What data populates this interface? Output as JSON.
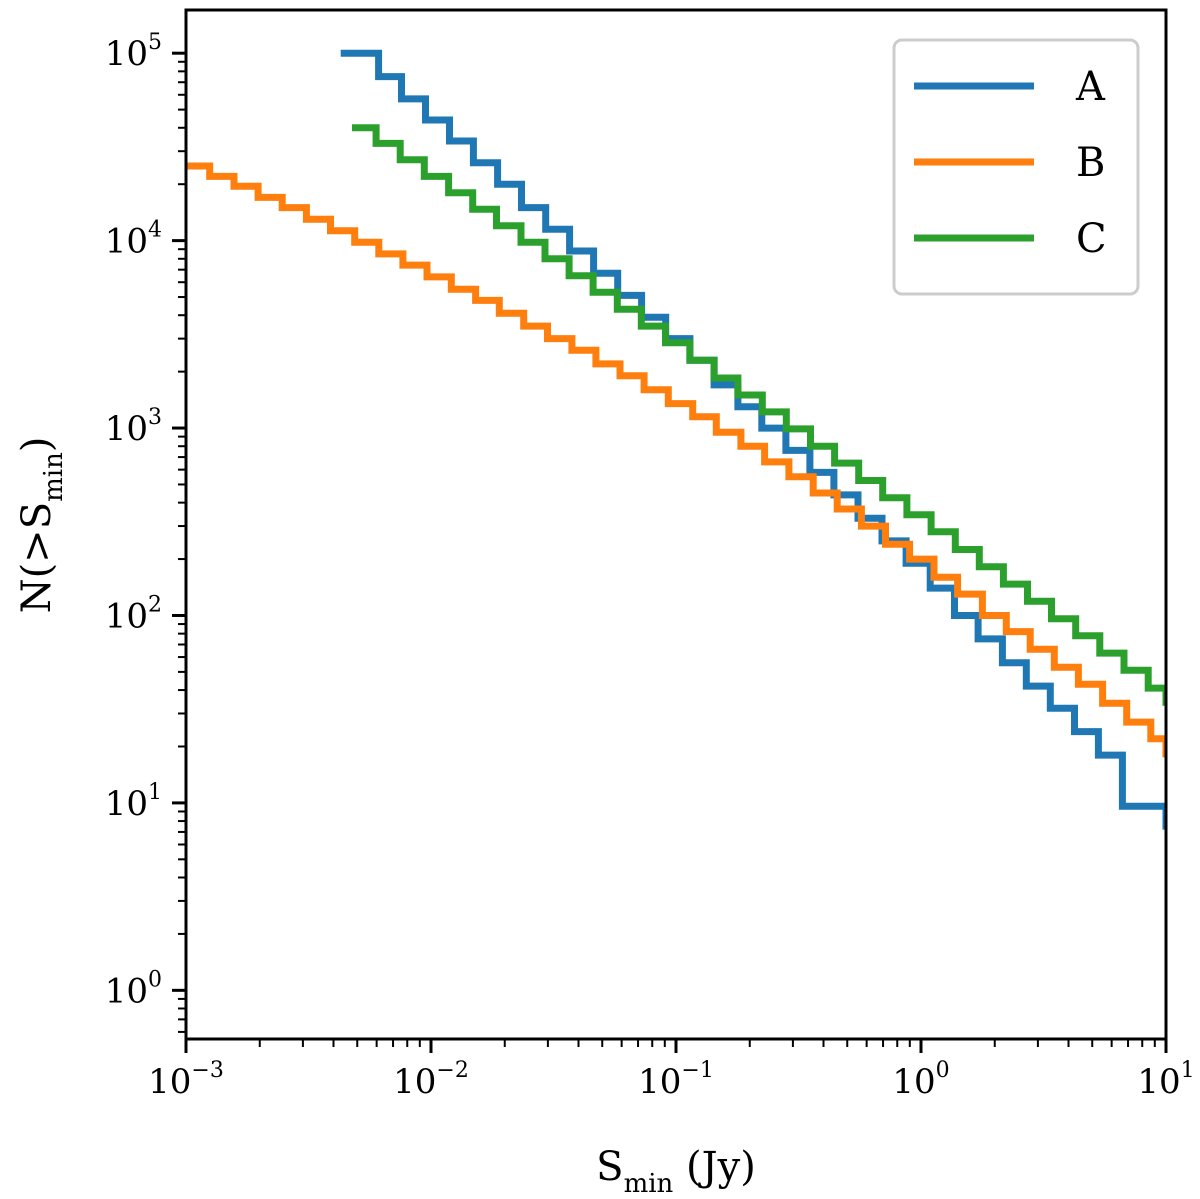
{
  "chart_data": {
    "type": "line",
    "step": true,
    "x_scale": "log",
    "y_scale": "log",
    "xlim": [
      0.001,
      10
    ],
    "ylim": [
      0.55,
      170000
    ],
    "x_ticks": [
      {
        "value": 0.001,
        "base": "10",
        "exp": "−3"
      },
      {
        "value": 0.01,
        "base": "10",
        "exp": "−2"
      },
      {
        "value": 0.1,
        "base": "10",
        "exp": "−1"
      },
      {
        "value": 1,
        "base": "10",
        "exp": "0"
      },
      {
        "value": 10,
        "base": "10",
        "exp": "1"
      }
    ],
    "y_ticks": [
      {
        "value": 1,
        "base": "10",
        "exp": "0"
      },
      {
        "value": 10,
        "base": "10",
        "exp": "1"
      },
      {
        "value": 100,
        "base": "10",
        "exp": "2"
      },
      {
        "value": 1000,
        "base": "10",
        "exp": "3"
      },
      {
        "value": 10000,
        "base": "10",
        "exp": "4"
      },
      {
        "value": 100000,
        "base": "10",
        "exp": "5"
      }
    ],
    "xlabel": {
      "main": "S",
      "sub": "min",
      "unit": " (Jy)"
    },
    "ylabel": {
      "pre": "N(>S",
      "sub": "min",
      "post": ")"
    },
    "legend_position": "upper-right",
    "series": [
      {
        "name": "A",
        "color": "#1f77b4",
        "x": [
          0.00428,
          0.00531,
          0.00611,
          0.00758,
          0.0095,
          0.0119,
          0.0149,
          0.0187,
          0.0234,
          0.0294,
          0.0368,
          0.0461,
          0.0578,
          0.0724,
          0.0908,
          0.114,
          0.143,
          0.179,
          0.224,
          0.281,
          0.352,
          0.441,
          0.553,
          0.693,
          0.869,
          1.09,
          1.37,
          1.71,
          2.15,
          2.69,
          3.37,
          4.23,
          5.3,
          6.64,
          6.64,
          10
        ],
        "y": [
          100000,
          100000,
          75000,
          57000,
          44000,
          34000,
          26000,
          20000,
          15000,
          11500,
          8800,
          6700,
          5100,
          3900,
          3000,
          2300,
          1700,
          1300,
          1000,
          760,
          580,
          440,
          330,
          250,
          190,
          140,
          100,
          75,
          56,
          42,
          32,
          24,
          18,
          13,
          9.6,
          7.2
        ]
      },
      {
        "name": "B",
        "color": "#ff7f0e",
        "x": [
          0.001,
          0.00125,
          0.00157,
          0.00197,
          0.00247,
          0.0031,
          0.00389,
          0.00488,
          0.00612,
          0.00768,
          0.00963,
          0.0121,
          0.0152,
          0.019,
          0.0239,
          0.0299,
          0.0376,
          0.0471,
          0.0591,
          0.0741,
          0.093,
          0.117,
          0.146,
          0.184,
          0.23,
          0.289,
          0.363,
          0.455,
          0.571,
          0.716,
          0.898,
          1.13,
          1.41,
          1.78,
          2.23,
          2.79,
          3.5,
          4.39,
          5.51,
          6.91,
          8.67,
          10
        ],
        "y": [
          25000,
          22000,
          19500,
          17000,
          15000,
          13000,
          11300,
          9800,
          8500,
          7400,
          6400,
          5500,
          4800,
          4100,
          3500,
          3000,
          2600,
          2200,
          1900,
          1600,
          1350,
          1150,
          950,
          800,
          660,
          550,
          450,
          370,
          300,
          240,
          200,
          160,
          130,
          100,
          82,
          66,
          53,
          43,
          34,
          27,
          22,
          17.5
        ]
      },
      {
        "name": "C",
        "color": "#2ca02c",
        "x": [
          0.00476,
          0.00597,
          0.00749,
          0.00939,
          0.0118,
          0.0148,
          0.0185,
          0.0233,
          0.0292,
          0.0366,
          0.0459,
          0.0576,
          0.0722,
          0.0906,
          0.114,
          0.143,
          0.179,
          0.225,
          0.282,
          0.354,
          0.444,
          0.557,
          0.698,
          0.876,
          1.1,
          1.38,
          1.73,
          2.17,
          2.72,
          3.41,
          4.28,
          5.37,
          6.74,
          8.46,
          10
        ],
        "y": [
          40000,
          33000,
          27000,
          22000,
          18000,
          14700,
          12000,
          9800,
          8000,
          6500,
          5300,
          4300,
          3500,
          2850,
          2300,
          1850,
          1500,
          1220,
          990,
          800,
          650,
          525,
          425,
          345,
          280,
          225,
          182,
          147,
          119,
          96,
          78,
          63,
          51,
          41,
          33
        ]
      }
    ]
  }
}
